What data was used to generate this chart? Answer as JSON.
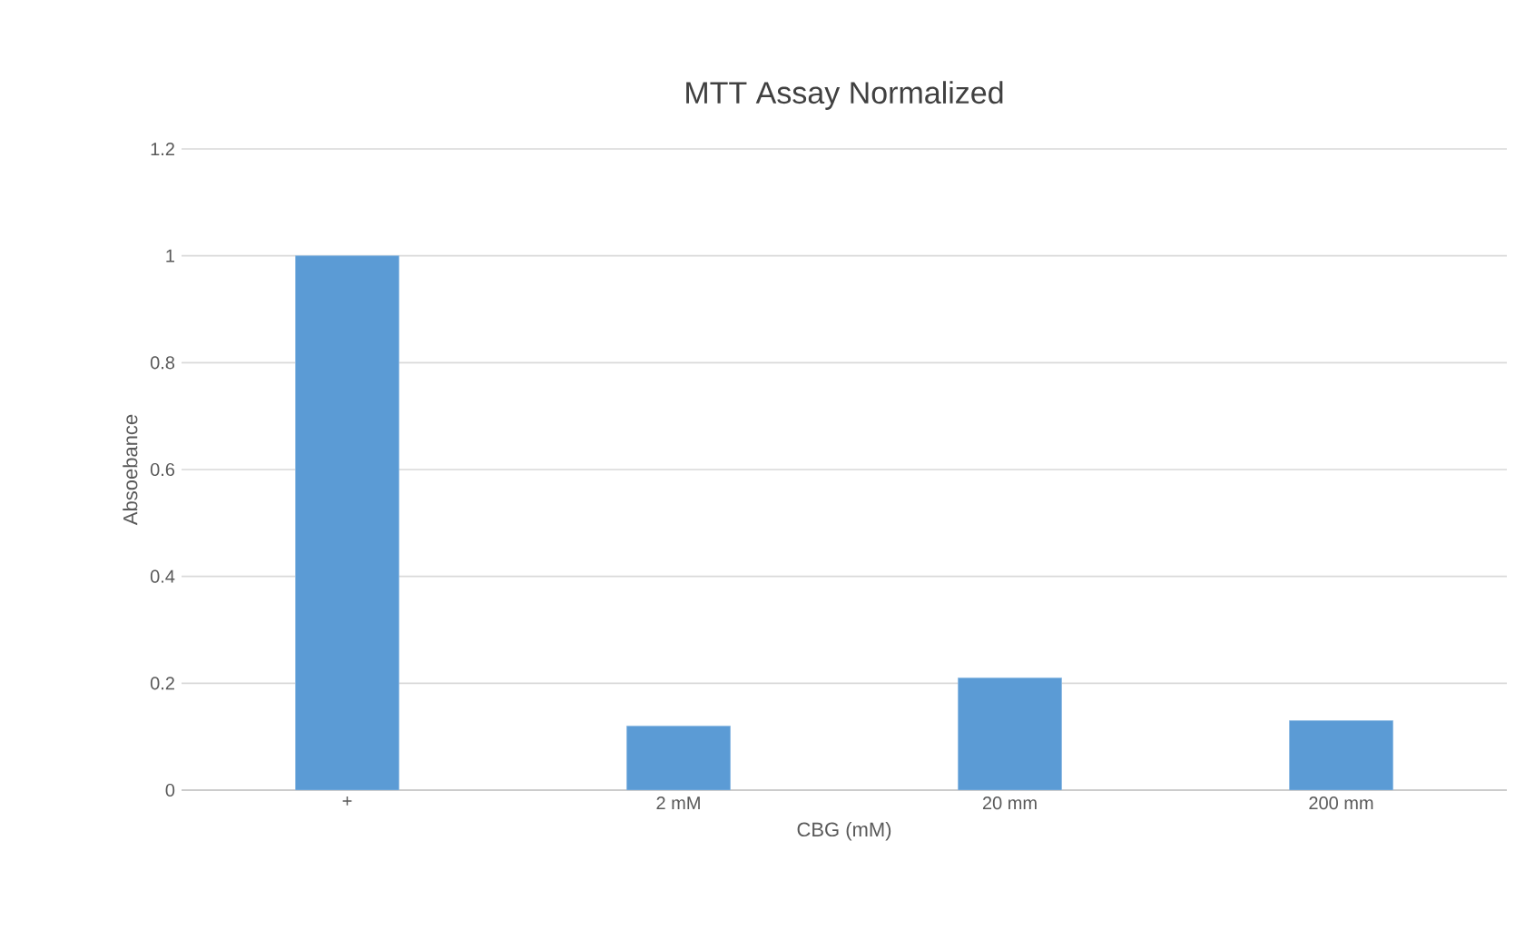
{
  "chart_data": {
    "type": "bar",
    "title": "MTT Assay Normalized",
    "xlabel": "CBG (mM)",
    "ylabel": "Absoebance",
    "categories": [
      "+",
      "2 mM",
      "20 mm",
      "200 mm"
    ],
    "values": [
      1.0,
      0.12,
      0.21,
      0.13
    ],
    "color": "#5b9bd5",
    "ylim": [
      0,
      1.2
    ],
    "yticks": [
      0,
      0.2,
      0.4,
      0.6,
      0.8,
      1,
      1.2
    ],
    "grid": "y"
  }
}
